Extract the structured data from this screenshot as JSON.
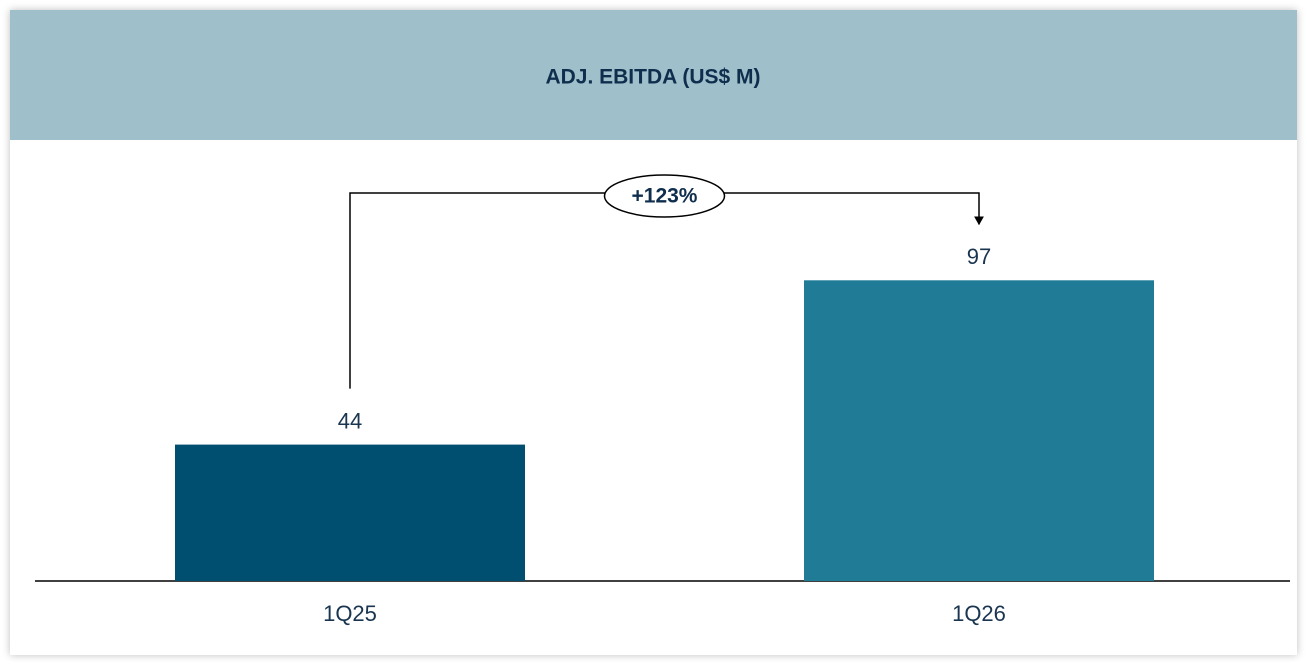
{
  "chart_data": {
    "type": "bar",
    "title": "ADJ. EBITDA (US$ M)",
    "categories": [
      "1Q25",
      "1Q26"
    ],
    "values": [
      44,
      97
    ],
    "colors": [
      "#004f71",
      "#1f7b96"
    ],
    "annotation": "+123%"
  }
}
